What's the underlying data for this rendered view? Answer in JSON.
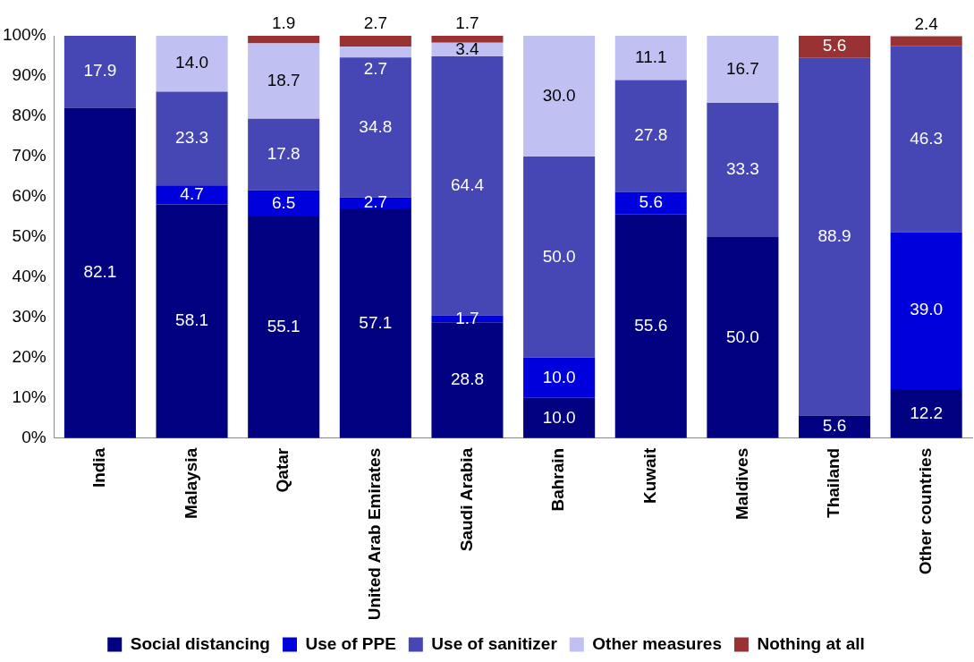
{
  "chart_data": {
    "type": "bar",
    "stacked": true,
    "legend": "bottom",
    "grid": false,
    "categories": [
      "India",
      "Malaysia",
      "Qatar",
      "United Arab Emirates",
      "Saudi Arabia",
      "Bahrain",
      "Kuwait",
      "Maldives",
      "Thailand",
      "Other countries"
    ],
    "ylim": [
      0,
      100
    ],
    "yticks": [
      {
        "value": 0,
        "label": "0%"
      },
      {
        "value": 10,
        "label": "10%"
      },
      {
        "value": 20,
        "label": "20%"
      },
      {
        "value": 30,
        "label": "30%"
      },
      {
        "value": 40,
        "label": "40%"
      },
      {
        "value": 50,
        "label": "50%"
      },
      {
        "value": 60,
        "label": "60%"
      },
      {
        "value": 70,
        "label": "70%"
      },
      {
        "value": 80,
        "label": "80%"
      },
      {
        "value": 90,
        "label": "90%"
      },
      {
        "value": 100,
        "label": "100%"
      }
    ],
    "series": [
      {
        "name": "Social distancing",
        "color": "#000080",
        "values": [
          82.1,
          58.1,
          55.1,
          57.1,
          28.8,
          10.0,
          55.6,
          50.0,
          5.6,
          12.2
        ],
        "value_labels": [
          "82.1",
          "58.1",
          "55.1",
          "57.1",
          "28.8",
          "10.0",
          "55.6",
          "50.0",
          "5.6",
          "12.2"
        ]
      },
      {
        "name": "Use of PPE",
        "color": "#0000dd",
        "values": [
          null,
          4.7,
          6.5,
          2.7,
          1.7,
          10.0,
          5.6,
          null,
          null,
          39.0
        ],
        "value_labels": [
          null,
          "4.7",
          "6.5",
          "2.7",
          "1.7",
          "10.0",
          "5.6",
          null,
          null,
          "39.0"
        ]
      },
      {
        "name": "Use of sanitizer",
        "color": "#4646b4",
        "values": [
          17.9,
          23.3,
          17.8,
          34.8,
          64.4,
          50.0,
          27.8,
          33.3,
          88.9,
          46.3
        ],
        "value_labels": [
          "17.9",
          "23.3",
          "17.8",
          "34.8",
          "64.4",
          "50.0",
          "27.8",
          "33.3",
          "88.9",
          "46.3"
        ]
      },
      {
        "name": "Other measures",
        "color": "#c0c0f2",
        "values": [
          null,
          14.0,
          18.7,
          2.7,
          3.4,
          30.0,
          11.1,
          16.7,
          null,
          null
        ],
        "value_labels": [
          null,
          "14.0",
          "18.7",
          "2.7",
          "3.4",
          "30.0",
          "11.1",
          "16.7",
          null,
          null
        ]
      },
      {
        "name": "Nothing at all",
        "color": "#993333",
        "values": [
          null,
          null,
          1.9,
          2.7,
          1.7,
          null,
          null,
          null,
          5.6,
          2.4
        ],
        "value_labels": [
          null,
          null,
          "1.9",
          "2.7",
          "1.7",
          null,
          null,
          null,
          "5.6",
          "2.4"
        ]
      }
    ]
  }
}
